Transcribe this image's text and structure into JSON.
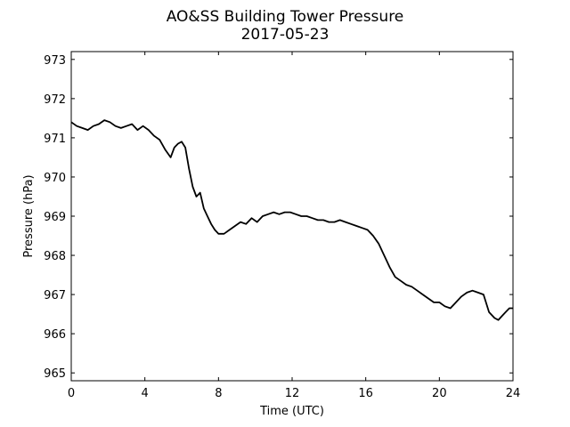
{
  "chart_data": {
    "type": "line",
    "title": "AO&SS Building Tower Pressure",
    "subtitle": "2017-05-23",
    "xlabel": "Time (UTC)",
    "ylabel": "Pressure (hPa)",
    "xlim": [
      0,
      24
    ],
    "ylim": [
      964.8,
      973.2
    ],
    "x_ticks": [
      0,
      4,
      8,
      12,
      16,
      20,
      24
    ],
    "y_ticks": [
      965,
      966,
      967,
      968,
      969,
      970,
      971,
      972,
      973
    ],
    "grid": false,
    "legend": "none",
    "series": [
      {
        "color": "#000000",
        "x": [
          0.0,
          0.3,
          0.6,
          0.9,
          1.2,
          1.5,
          1.8,
          2.1,
          2.4,
          2.7,
          3.0,
          3.3,
          3.6,
          3.9,
          4.2,
          4.5,
          4.8,
          5.1,
          5.4,
          5.6,
          5.8,
          6.0,
          6.2,
          6.4,
          6.6,
          6.8,
          7.0,
          7.2,
          7.4,
          7.6,
          7.8,
          8.0,
          8.3,
          8.6,
          8.9,
          9.2,
          9.5,
          9.8,
          10.1,
          10.4,
          10.7,
          11.0,
          11.3,
          11.6,
          11.9,
          12.2,
          12.5,
          12.8,
          13.1,
          13.4,
          13.7,
          14.0,
          14.3,
          14.6,
          14.9,
          15.2,
          15.5,
          15.8,
          16.1,
          16.4,
          16.7,
          17.0,
          17.3,
          17.6,
          17.9,
          18.2,
          18.5,
          18.8,
          19.1,
          19.4,
          19.7,
          20.0,
          20.3,
          20.6,
          20.9,
          21.2,
          21.5,
          21.8,
          22.1,
          22.4,
          22.7,
          23.0,
          23.2,
          23.4,
          23.6,
          23.8,
          24.0
        ],
        "values": [
          971.4,
          971.3,
          971.25,
          971.2,
          971.3,
          971.35,
          971.45,
          971.4,
          971.3,
          971.25,
          971.3,
          971.35,
          971.2,
          971.3,
          971.2,
          971.05,
          970.95,
          970.7,
          970.5,
          970.75,
          970.85,
          970.9,
          970.75,
          970.2,
          969.75,
          969.5,
          969.6,
          969.2,
          969.0,
          968.8,
          968.65,
          968.55,
          968.55,
          968.65,
          968.75,
          968.85,
          968.8,
          968.95,
          968.85,
          969.0,
          969.05,
          969.1,
          969.05,
          969.1,
          969.1,
          969.05,
          969.0,
          969.0,
          968.95,
          968.9,
          968.9,
          968.85,
          968.85,
          968.9,
          968.85,
          968.8,
          968.75,
          968.7,
          968.65,
          968.5,
          968.3,
          968.0,
          967.7,
          967.45,
          967.35,
          967.25,
          967.2,
          967.1,
          967.0,
          966.9,
          966.8,
          966.8,
          966.7,
          966.65,
          966.8,
          966.95,
          967.05,
          967.1,
          967.05,
          967.0,
          966.55,
          966.4,
          966.35,
          966.45,
          966.55,
          966.65,
          966.65
        ]
      }
    ]
  }
}
